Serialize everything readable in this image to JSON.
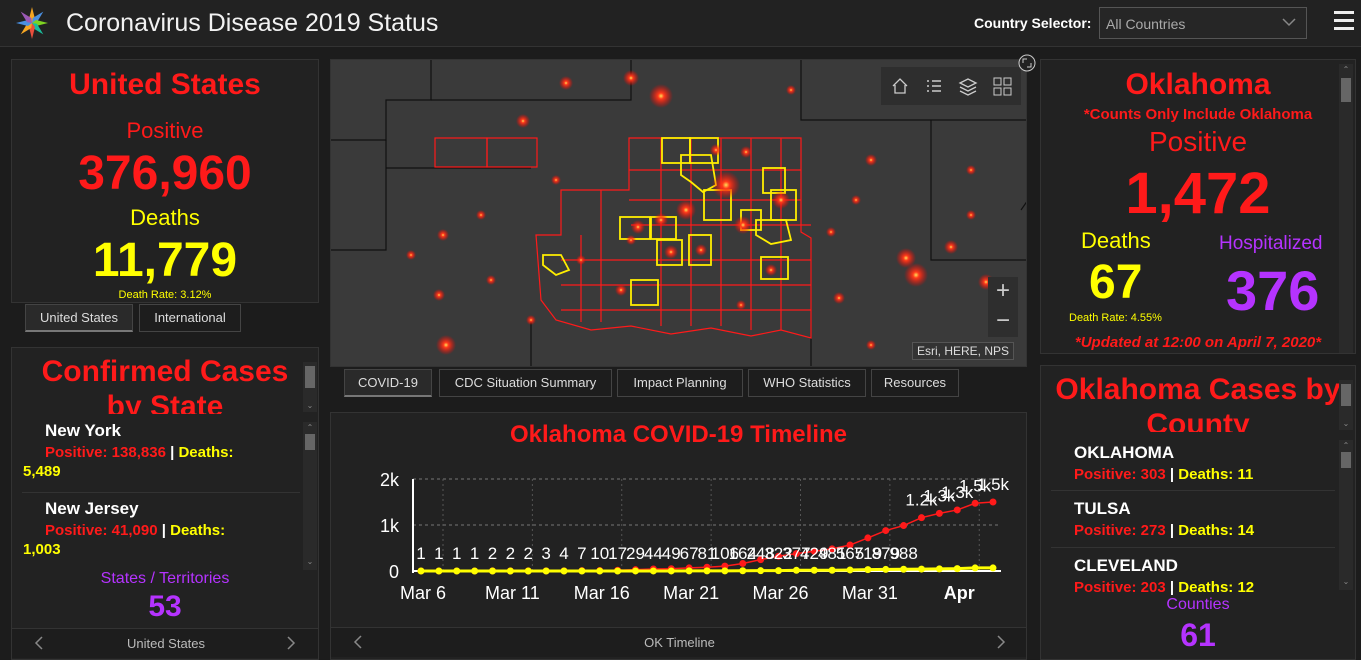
{
  "header": {
    "title": "Coronavirus Disease 2019 Status",
    "country_selector_label": "Country Selector:",
    "country_selector_value": "All Countries"
  },
  "us": {
    "title": "United States",
    "positive_label": "Positive",
    "positive_value": "376,960",
    "deaths_label": "Deaths",
    "deaths_value": "11,779",
    "death_rate": "Death Rate: 3.12%",
    "tabs": [
      "United States",
      "International"
    ]
  },
  "states": {
    "title_line1": "Confirmed Cases",
    "title_line2": "by State",
    "items": [
      {
        "name": "New York",
        "positive": "Positive: 138,836",
        "sep": "|",
        "deaths_label": "Deaths:",
        "deaths": "5,489"
      },
      {
        "name": "New Jersey",
        "positive": "Positive: 41,090",
        "sep": "|",
        "deaths_label": "Deaths:",
        "deaths": "1,003"
      }
    ],
    "count_label": "States / Territories",
    "count_value": "53",
    "nav_label": "United States"
  },
  "map": {
    "attribution": "Esri, HERE, NPS",
    "zoom_in": "+",
    "zoom_out": "−",
    "tabs": [
      "COVID-19",
      "CDC Situation Summary",
      "Impact Planning",
      "WHO Statistics",
      "Resources"
    ]
  },
  "timeline": {
    "nav_label": "OK Timeline"
  },
  "chart_data": {
    "type": "line",
    "title": "Oklahoma COVID-19 Timeline",
    "xlabel": "",
    "ylabel": "",
    "ylim": [
      0,
      2000
    ],
    "y_ticks": [
      "0",
      "1k",
      "2k"
    ],
    "x_tick_labels": [
      "Mar 6",
      "Mar 11",
      "Mar 16",
      "Mar 21",
      "Mar 26",
      "Mar 31",
      "Apr"
    ],
    "x": [
      "Mar 6",
      "Mar 7",
      "Mar 8",
      "Mar 9",
      "Mar 10",
      "Mar 11",
      "Mar 12",
      "Mar 13",
      "Mar 14",
      "Mar 15",
      "Mar 16",
      "Mar 17",
      "Mar 18",
      "Mar 19",
      "Mar 20",
      "Mar 21",
      "Mar 22",
      "Mar 23",
      "Mar 24",
      "Mar 25",
      "Mar 26",
      "Mar 27",
      "Mar 28",
      "Mar 29",
      "Mar 30",
      "Mar 31",
      "Apr 1",
      "Apr 2",
      "Apr 3",
      "Apr 4",
      "Apr 5",
      "Apr 6",
      "Apr 7"
    ],
    "series": [
      {
        "color": "#ff1a1a",
        "values": [
          1,
          1,
          1,
          1,
          2,
          2,
          2,
          3,
          4,
          7,
          10,
          17,
          29,
          44,
          49,
          67,
          81,
          106,
          164,
          248,
          322,
          377,
          429,
          481,
          565,
          719,
          879,
          988,
          1159,
          1252,
          1327,
          1472,
          1500
        ]
      },
      {
        "color": "#ffff00",
        "values": [
          0,
          0,
          0,
          0,
          0,
          0,
          0,
          0,
          0,
          0,
          0,
          0,
          1,
          1,
          1,
          2,
          2,
          3,
          5,
          7,
          8,
          15,
          16,
          17,
          23,
          30,
          34,
          38,
          42,
          46,
          51,
          67,
          67
        ]
      }
    ],
    "peak_labels": [
      "1.2k",
      "1.3k",
      "1.5k"
    ],
    "grid": true,
    "legend": "none"
  },
  "oklahoma": {
    "title": "Oklahoma",
    "note": "*Counts Only Include Oklahoma",
    "positive_label": "Positive",
    "positive_value": "1,472",
    "deaths_label": "Deaths",
    "deaths_value": "67",
    "hosp_label": "Hospitalized",
    "hosp_value": "376",
    "death_rate": "Death Rate: 4.55%",
    "updated": "*Updated at 12:00 on April 7, 2020*"
  },
  "counties": {
    "title_line1": "Oklahoma Cases by",
    "title_line2": "County",
    "items": [
      {
        "name": "OKLAHOMA",
        "positive": "Positive: 303",
        "sep": "|",
        "deaths": "Deaths: 11"
      },
      {
        "name": "TULSA",
        "positive": "Positive: 273",
        "sep": "|",
        "deaths": "Deaths: 14"
      },
      {
        "name": "CLEVELAND",
        "positive": "Positive: 203",
        "sep": "|",
        "deaths": "Deaths: 12"
      }
    ],
    "count_label": "Counties",
    "count_value": "61"
  }
}
